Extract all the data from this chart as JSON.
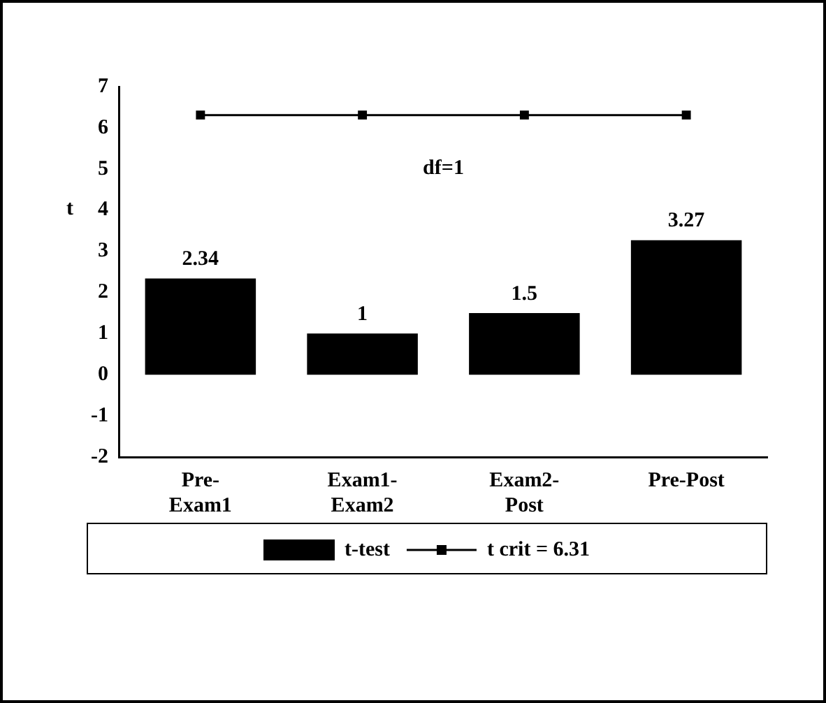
{
  "chart_data": {
    "type": "bar",
    "categories": [
      "Pre-Exam1",
      "Exam1-Exam2",
      "Exam2-Post",
      "Pre-Post"
    ],
    "series": [
      {
        "name": "t-test",
        "color": "#000000",
        "values": [
          2.34,
          1,
          1.5,
          3.27
        ],
        "value_labels": [
          "2.34",
          "1",
          "1.5",
          "3.27"
        ]
      },
      {
        "name": "t crit = 6.31",
        "type": "line",
        "color": "#000000",
        "values": [
          6.31,
          6.31,
          6.31,
          6.31
        ],
        "marker": "square"
      }
    ],
    "ylabel": "t",
    "ylim": [
      -2,
      7
    ],
    "yticks": [
      -2,
      -1,
      0,
      1,
      2,
      3,
      4,
      5,
      6,
      7
    ],
    "annotations": [
      "df=1"
    ],
    "grid": false,
    "legend": "bottom"
  }
}
